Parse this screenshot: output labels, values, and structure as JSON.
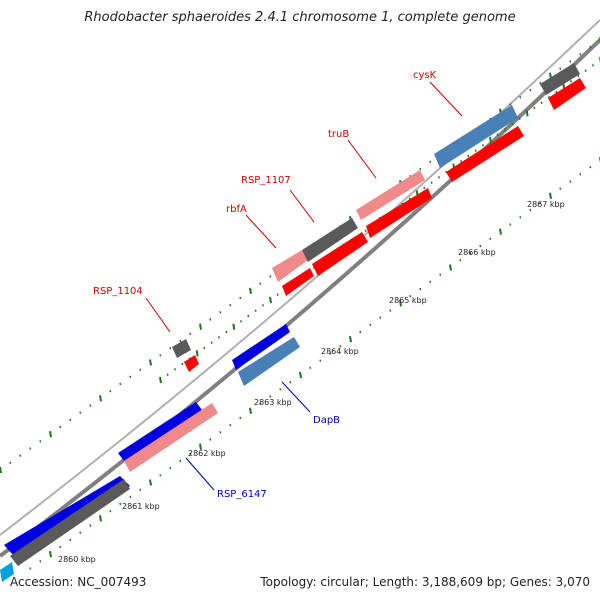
{
  "title": "Rhodobacter sphaeroides 2.4.1 chromosome 1, complete genome",
  "footer": {
    "accession": "Accession: NC_007493",
    "summary": "Topology: circular; Length: 3,188,609 bp; Genes: 3,070"
  },
  "colors": {
    "backbone": "#808080",
    "forward_gene": "#0000e0",
    "forward_gene_light": "#4a80b8",
    "reverse_gene": "#ff0000",
    "reverse_gene_light": "#f08a8a",
    "unknown_gene": "#5a5a5a",
    "tick_major": "#1a7a1a",
    "tick_minor": "#1a7a1a",
    "label_red": "#d00000",
    "label_blue": "#0000c0"
  },
  "kbp_labels": [
    "2860 kbp",
    "2861 kbp",
    "2862 kbp",
    "2863 kbp",
    "2864 kbp",
    "2865 kbp",
    "2866 kbp",
    "2867 kbp"
  ],
  "gene_labels": [
    {
      "text": "cysK",
      "color": "red"
    },
    {
      "text": "truB",
      "color": "red"
    },
    {
      "text": "RSP_1107",
      "color": "red"
    },
    {
      "text": "rbfA",
      "color": "red"
    },
    {
      "text": "RSP_1104",
      "color": "red"
    },
    {
      "text": "DapB",
      "color": "blue"
    },
    {
      "text": "RSP_6147",
      "color": "blue"
    }
  ]
}
